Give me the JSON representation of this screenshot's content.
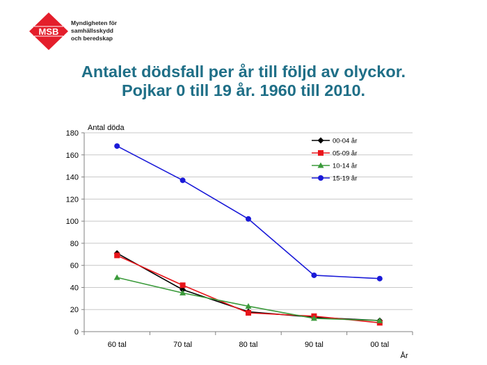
{
  "org": {
    "logo_text": "MSB",
    "name_lines": [
      "Myndigheten för",
      "samhällsskydd",
      "och beredskap"
    ]
  },
  "title_lines": [
    "Antalet dödsfall per år till följd av olyckor.",
    "Pojkar 0 till 19 år. 1960 till 2010."
  ],
  "colors": {
    "brand": "#e41e2b",
    "title": "#1f6f87"
  },
  "chart_data": {
    "type": "line",
    "ylabel": "Antal döda",
    "xlabel": "År",
    "categories": [
      "60 tal",
      "70 tal",
      "80 tal",
      "90 tal",
      "00 tal"
    ],
    "ylim": [
      0,
      180
    ],
    "yticks": [
      0,
      20,
      40,
      60,
      80,
      100,
      120,
      140,
      160,
      180
    ],
    "grid": true,
    "legend_position": "top-right",
    "series": [
      {
        "name": "00-04 år",
        "values": [
          71,
          38,
          18,
          13,
          10
        ],
        "color": "#000000",
        "marker": "diamond"
      },
      {
        "name": "05-09 år",
        "values": [
          69,
          42,
          17,
          14,
          8
        ],
        "color": "#e8141a",
        "marker": "square"
      },
      {
        "name": "10-14 år",
        "values": [
          49,
          35,
          23,
          12,
          10
        ],
        "color": "#3a9a3a",
        "marker": "triangle"
      },
      {
        "name": "15-19 år",
        "values": [
          168,
          137,
          102,
          51,
          48
        ],
        "color": "#1a1ad8",
        "marker": "circle"
      }
    ]
  }
}
